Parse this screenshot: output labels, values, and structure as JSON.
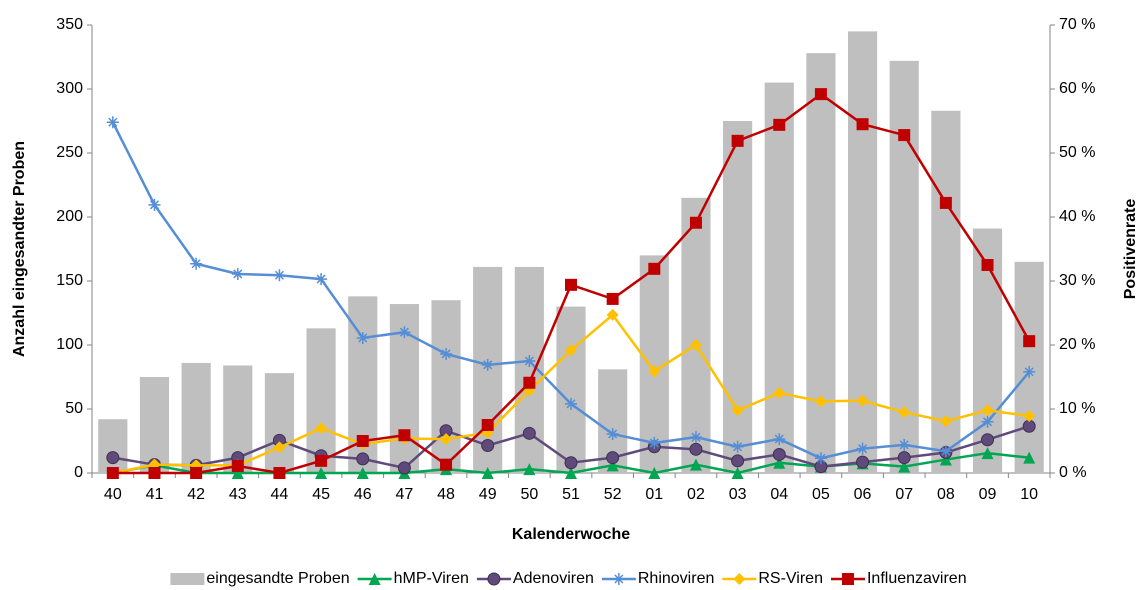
{
  "chart_data": {
    "type": "combo",
    "x_label": "Kalenderwoche",
    "y_label": "Anzahl eingesandter Proben",
    "y2_label": "Positivenrate",
    "categories": [
      "40",
      "41",
      "42",
      "43",
      "44",
      "45",
      "46",
      "47",
      "48",
      "49",
      "50",
      "51",
      "52",
      "01",
      "02",
      "03",
      "04",
      "05",
      "06",
      "07",
      "08",
      "09",
      "10"
    ],
    "ylim": [
      0,
      350
    ],
    "yticks": [
      0,
      50,
      100,
      150,
      200,
      250,
      300,
      350
    ],
    "y2lim": [
      0,
      70
    ],
    "y2ticks": [
      {
        "value": 0,
        "label": "0 %"
      },
      {
        "value": 10,
        "label": "10 %"
      },
      {
        "value": 20,
        "label": "20 %"
      },
      {
        "value": 30,
        "label": "30 %"
      },
      {
        "value": 40,
        "label": "40 %"
      },
      {
        "value": 50,
        "label": "50 %"
      },
      {
        "value": 60,
        "label": "60 %"
      },
      {
        "value": 70,
        "label": "70 %"
      }
    ],
    "legend": "bottom",
    "series": [
      {
        "name": "eingesandte Proben",
        "type": "bar",
        "color": "#bfbfbf",
        "values": [
          42,
          75,
          86,
          84,
          78,
          113,
          138,
          132,
          135,
          161,
          161,
          130,
          81,
          170,
          215,
          275,
          305,
          328,
          345,
          322,
          283,
          191,
          165
        ]
      },
      {
        "name": "hMP-Viren",
        "type": "line",
        "axis": "y2",
        "color": "#00a651",
        "marker": "triangle",
        "values": [
          0,
          1.2,
          0,
          0,
          0,
          0,
          0,
          0,
          0.6,
          0,
          0.6,
          0,
          1.2,
          0,
          1.3,
          0,
          1.6,
          1.0,
          1.5,
          1.0,
          2.1,
          3.1,
          2.4
        ]
      },
      {
        "name": "Adenoviren",
        "type": "line",
        "axis": "y2",
        "color": "#604a7b",
        "marker": "circle",
        "values": [
          2.4,
          1.3,
          1.2,
          2.4,
          5.1,
          2.7,
          2.2,
          0.8,
          6.6,
          4.3,
          6.2,
          1.6,
          2.4,
          4.1,
          3.7,
          1.9,
          2.9,
          1.0,
          1.7,
          2.4,
          3.2,
          5.2,
          7.3
        ]
      },
      {
        "name": "Rhinoviren",
        "type": "line",
        "axis": "y2",
        "color": "#558ed5",
        "marker": "asterisk",
        "values": [
          54.8,
          41.9,
          32.7,
          31.1,
          30.9,
          30.3,
          21.1,
          22.0,
          18.6,
          16.9,
          17.5,
          10.8,
          6.1,
          4.7,
          5.6,
          4.1,
          5.3,
          2.3,
          3.8,
          4.4,
          3.4,
          8.0,
          15.8
        ]
      },
      {
        "name": "RS-Viren",
        "type": "line",
        "axis": "y2",
        "color": "#ffc000",
        "marker": "diamond",
        "values": [
          0,
          1.3,
          1.2,
          1.2,
          4.0,
          7.0,
          4.5,
          5.4,
          5.3,
          6.3,
          12.9,
          19.2,
          24.7,
          15.9,
          20.0,
          9.8,
          12.5,
          11.2,
          11.3,
          9.5,
          8.1,
          9.8,
          8.9
        ]
      },
      {
        "name": "Influenzaviren",
        "type": "line",
        "axis": "y2",
        "color": "#c00000",
        "marker": "square",
        "values": [
          0,
          0,
          0,
          1.1,
          0,
          1.9,
          5.0,
          5.9,
          1.3,
          7.5,
          14.1,
          29.4,
          27.2,
          31.9,
          39.1,
          51.9,
          54.4,
          59.2,
          54.5,
          52.8,
          42.2,
          32.5,
          20.6
        ]
      }
    ]
  }
}
